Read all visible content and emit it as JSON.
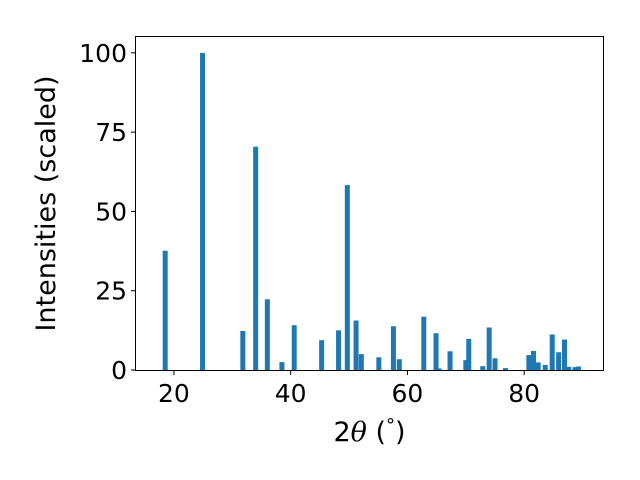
{
  "chart_data": {
    "type": "bar",
    "xlabel_parts": [
      "2",
      "θ",
      " (",
      "°",
      ")"
    ],
    "ylabel": "Intensities (scaled)",
    "xlim": [
      13.5,
      93.5
    ],
    "ylim": [
      0,
      105
    ],
    "x_ticks": [
      20,
      40,
      60,
      80
    ],
    "y_ticks": [
      0,
      25,
      50,
      75,
      100
    ],
    "bar_color": "#1f77b4",
    "grid": false,
    "points": [
      {
        "x": 18.5,
        "y": 37.6
      },
      {
        "x": 24.9,
        "y": 100.0
      },
      {
        "x": 31.8,
        "y": 12.3
      },
      {
        "x": 34.0,
        "y": 70.4
      },
      {
        "x": 36.0,
        "y": 22.3
      },
      {
        "x": 38.5,
        "y": 2.5
      },
      {
        "x": 40.6,
        "y": 14.1
      },
      {
        "x": 45.3,
        "y": 9.4
      },
      {
        "x": 48.2,
        "y": 12.5
      },
      {
        "x": 49.7,
        "y": 58.3
      },
      {
        "x": 51.2,
        "y": 15.6
      },
      {
        "x": 52.1,
        "y": 5.0
      },
      {
        "x": 55.1,
        "y": 4.0
      },
      {
        "x": 57.6,
        "y": 13.8
      },
      {
        "x": 58.6,
        "y": 3.4
      },
      {
        "x": 62.8,
        "y": 16.8
      },
      {
        "x": 64.9,
        "y": 11.6
      },
      {
        "x": 65.4,
        "y": 0.5
      },
      {
        "x": 67.3,
        "y": 5.9
      },
      {
        "x": 70.0,
        "y": 3.1
      },
      {
        "x": 70.5,
        "y": 9.8
      },
      {
        "x": 72.9,
        "y": 1.2
      },
      {
        "x": 74.0,
        "y": 13.4
      },
      {
        "x": 75.0,
        "y": 3.7
      },
      {
        "x": 76.8,
        "y": 0.6
      },
      {
        "x": 80.8,
        "y": 4.7
      },
      {
        "x": 81.6,
        "y": 6.0
      },
      {
        "x": 82.4,
        "y": 2.4
      },
      {
        "x": 83.6,
        "y": 1.6
      },
      {
        "x": 84.8,
        "y": 11.2
      },
      {
        "x": 85.9,
        "y": 5.6
      },
      {
        "x": 86.9,
        "y": 9.6
      },
      {
        "x": 87.6,
        "y": 1.0
      },
      {
        "x": 88.7,
        "y": 0.9
      },
      {
        "x": 89.3,
        "y": 1.1
      }
    ]
  }
}
